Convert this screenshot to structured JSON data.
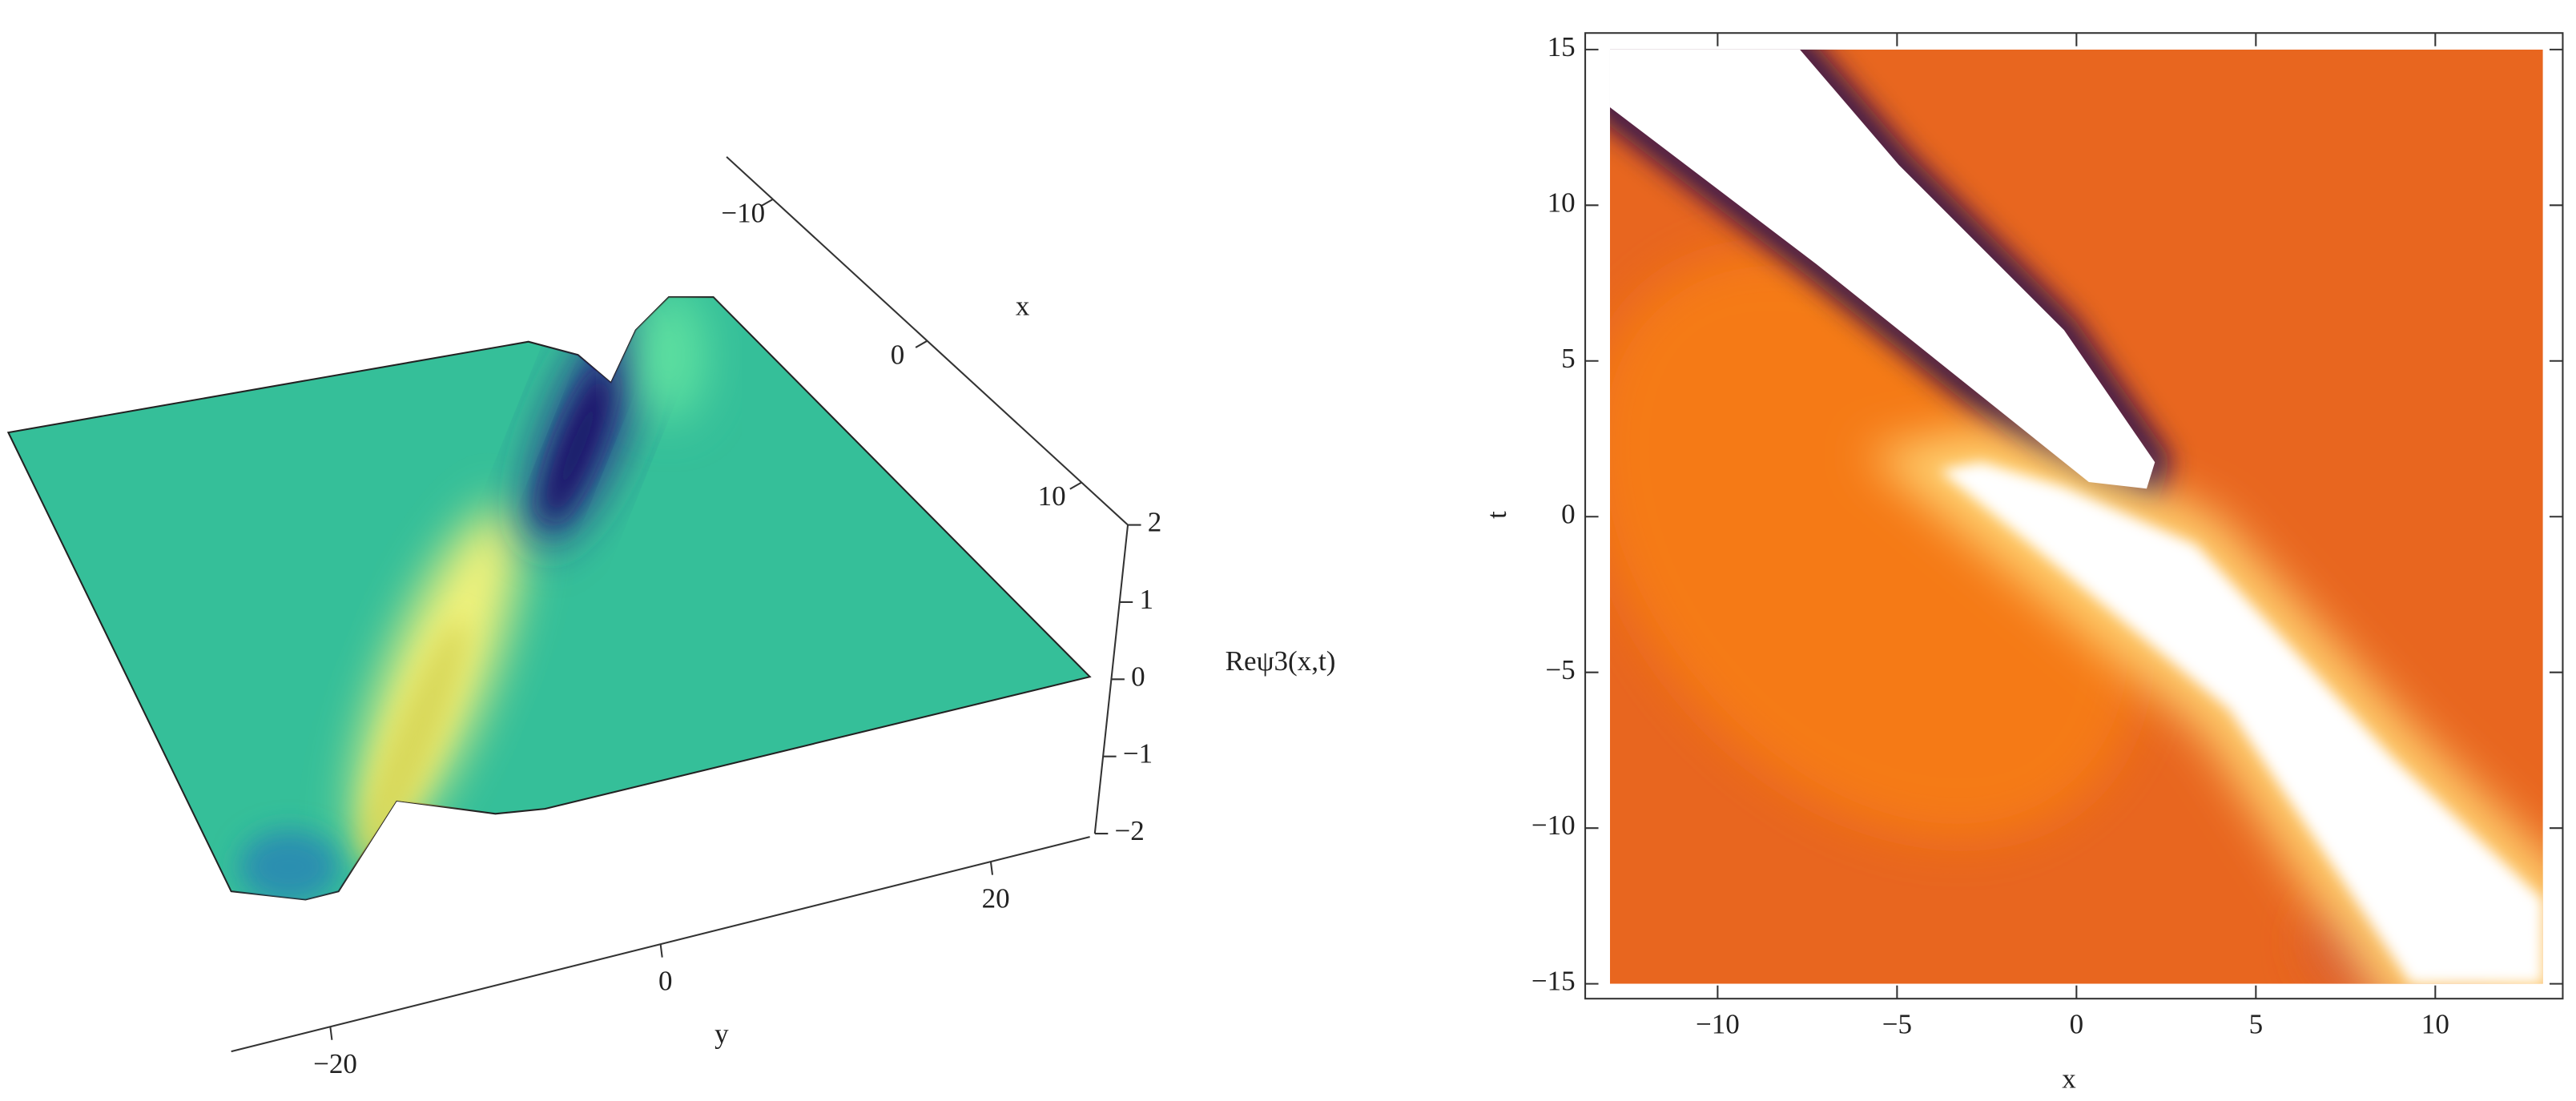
{
  "chart_data": [
    {
      "type": "surface3d",
      "xlabel": "x",
      "ylabel": "y",
      "zlabel": "Reψ3(x,t)",
      "xlim": [
        -13,
        13
      ],
      "xticks": [
        {
          "value": -10,
          "label": "−10"
        },
        0,
        10
      ],
      "ylim": [
        -26,
        26
      ],
      "yticks": [
        {
          "value": -20,
          "label": "−20"
        },
        0,
        20
      ],
      "zlim": [
        -2,
        2
      ],
      "zticks": [
        {
          "value": -2,
          "label": "−2"
        },
        {
          "value": -1,
          "label": "−1"
        },
        0,
        1,
        2
      ]
    },
    {
      "type": "density",
      "xlabel": "x",
      "ylabel": "t",
      "xlim": [
        -13,
        13
      ],
      "xticks": [
        {
          "value": -10,
          "label": "−10"
        },
        {
          "value": -5,
          "label": "−5"
        },
        0,
        5,
        10
      ],
      "ylim": [
        -15,
        15
      ],
      "yticks": [
        {
          "value": -15,
          "label": "−15"
        },
        {
          "value": -10,
          "label": "−10"
        },
        {
          "value": -5,
          "label": "−5"
        },
        0,
        5,
        10,
        15
      ]
    }
  ]
}
